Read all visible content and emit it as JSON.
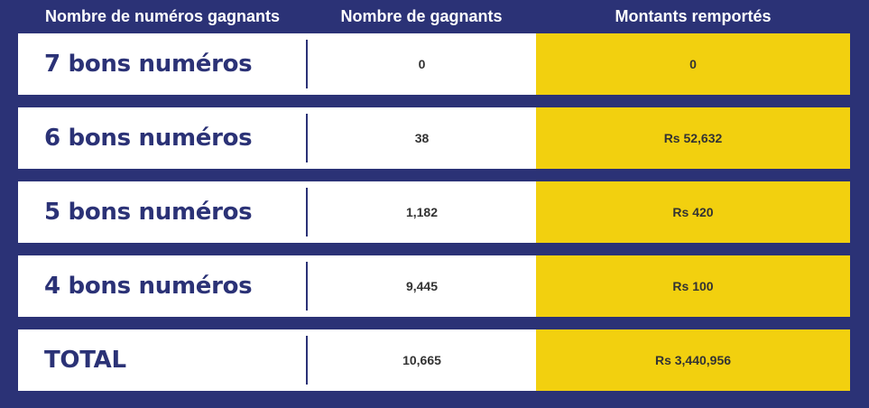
{
  "header": {
    "col1": "Nombre de numéros gagnants",
    "col2": "Nombre de gagnants",
    "col3": "Montants remportés"
  },
  "rows": [
    {
      "label": "7 bons numéros",
      "winners": "0",
      "amount": "0"
    },
    {
      "label": "6 bons numéros",
      "winners": "38",
      "amount": "Rs 52,632"
    },
    {
      "label": "5 bons numéros",
      "winners": "1,182",
      "amount": "Rs 420"
    },
    {
      "label": "4 bons numéros",
      "winners": "9,445",
      "amount": "Rs 100"
    },
    {
      "label": "TOTAL",
      "winners": "10,665",
      "amount": "Rs 3,440,956"
    }
  ],
  "colors": {
    "background": "#2b3276",
    "row": "#ffffff",
    "amount_highlight": "#f2d00f"
  }
}
